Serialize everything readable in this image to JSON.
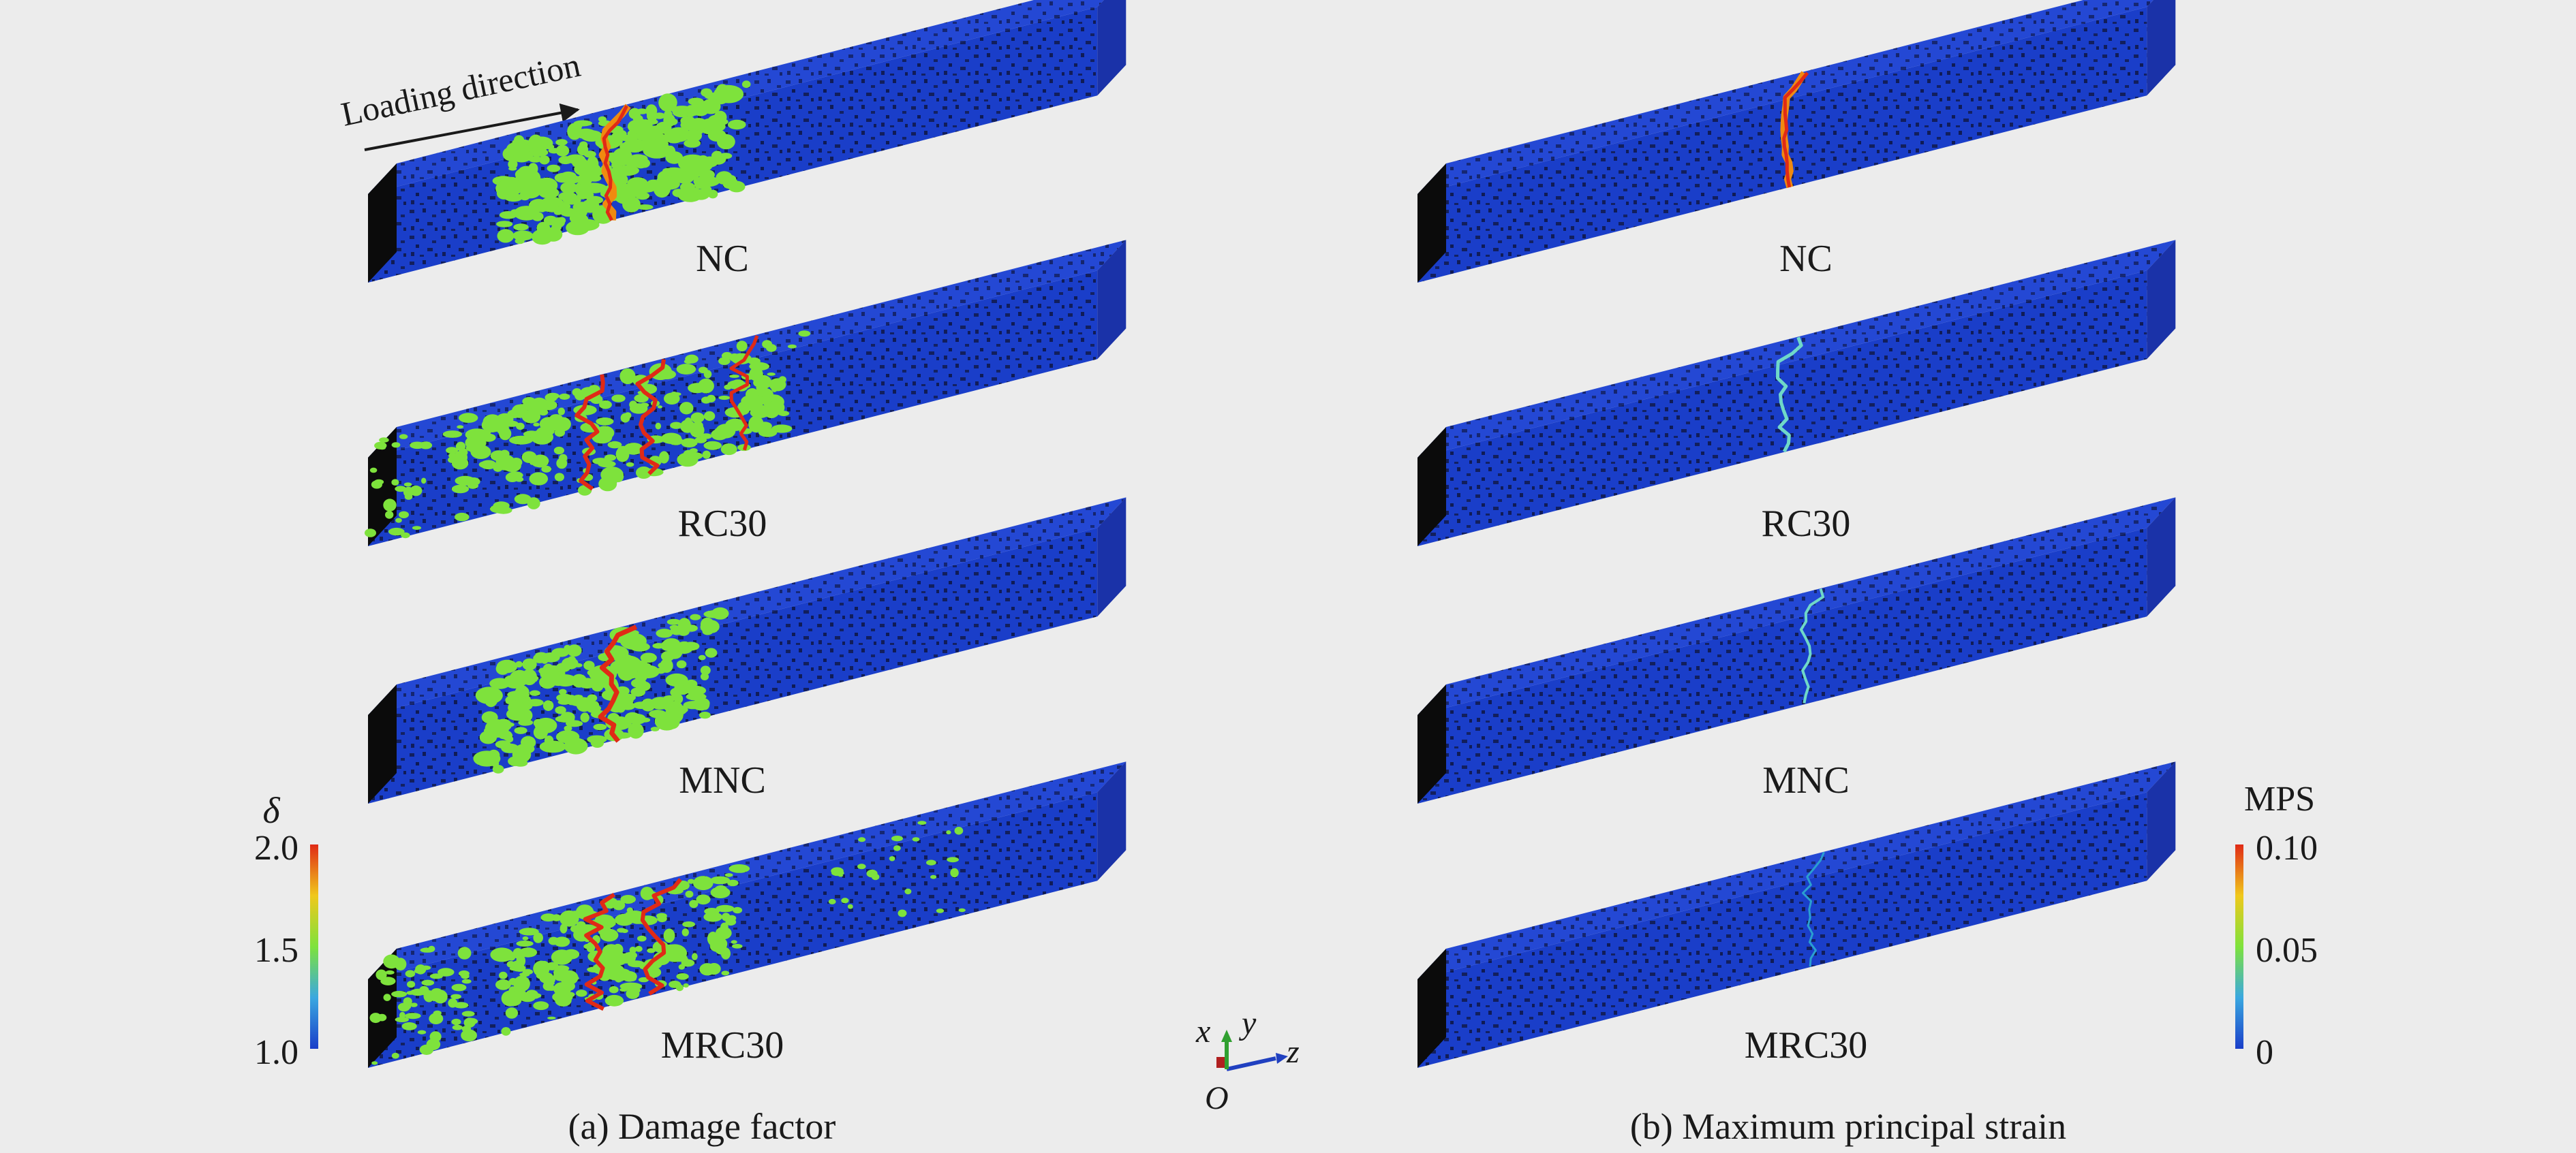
{
  "loading_direction": "Loading direction",
  "panels": [
    {
      "caption": "(a) Damage factor",
      "field": "damage",
      "specimens": [
        "NC",
        "RC30",
        "MNC",
        "MRC30"
      ],
      "colorbar": {
        "symbol": "δ",
        "ticks": [
          "2.0",
          "1.5",
          "1.0"
        ],
        "range": [
          1.0,
          2.0
        ]
      }
    },
    {
      "caption": "(b) Maximum principal strain",
      "field": "strain",
      "specimens": [
        "NC",
        "RC30",
        "MNC",
        "MRC30"
      ],
      "colorbar": {
        "symbol": "MPS",
        "ticks": [
          "0.10",
          "0.05",
          "0"
        ],
        "range": [
          0,
          0.1
        ]
      }
    }
  ],
  "axes": {
    "x": "x",
    "y": "y",
    "z": "z",
    "origin": "O"
  },
  "colors": {
    "concrete_blue": "#1a3ec9",
    "aggregate_dark": "#101840",
    "damage_green": "#7ee23c",
    "crack_red": "#e02a16",
    "crack_orange": "#f08a10",
    "strain_cyan": "#6fd8c8",
    "end_face": "#0b0b0b",
    "background": "#ececec"
  }
}
